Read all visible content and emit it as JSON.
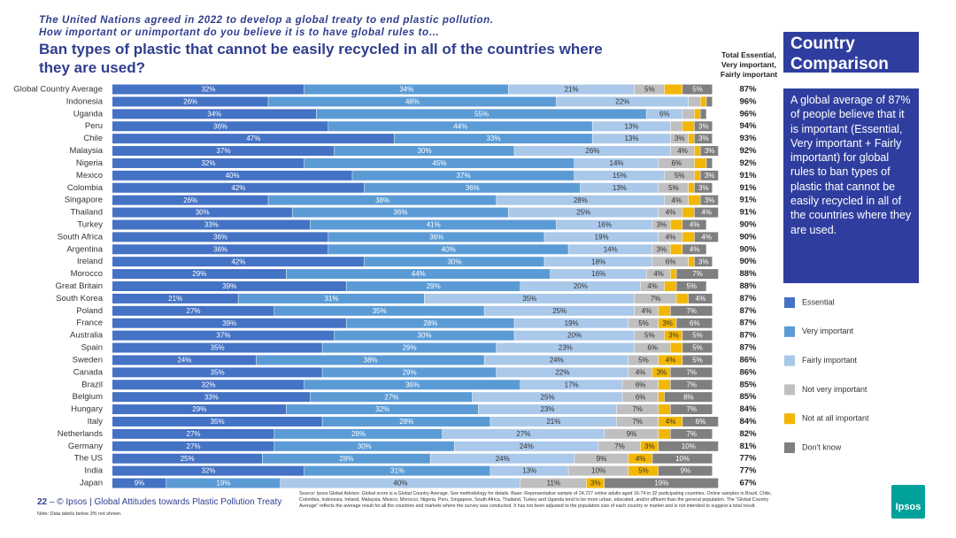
{
  "header": {
    "intro": "The United Nations agreed in 2022 to develop a global treaty to end plastic pollution.",
    "question": "How important or unimportant do you believe it is to have global rules to…"
  },
  "chart_data": {
    "type": "stacked-bar",
    "title": "Ban types of plastic that cannot be easily recycled in all of the countries where they are used?",
    "categories": [
      "Global Country Average",
      "Indonesia",
      "Uganda",
      "Peru",
      "Chile",
      "Malaysia",
      "Nigeria",
      "Mexico",
      "Colombia",
      "Singapore",
      "Thailand",
      "Turkey",
      "South Africa",
      "Argentina",
      "Ireland",
      "Morocco",
      "Great Britain",
      "South Korea",
      "Poland",
      "France",
      "Australia",
      "Spain",
      "Sweden",
      "Canada",
      "Brazil",
      "Belgium",
      "Hungary",
      "Italy",
      "Netherlands",
      "Germany",
      "The US",
      "India",
      "Japan"
    ],
    "xlim": [
      0,
      100
    ],
    "series": [
      {
        "name": "Essential",
        "color": "#4472c4",
        "values": [
          32,
          26,
          34,
          36,
          47,
          37,
          32,
          40,
          42,
          26,
          30,
          33,
          36,
          36,
          42,
          29,
          39,
          21,
          27,
          39,
          37,
          35,
          24,
          35,
          32,
          33,
          29,
          35,
          27,
          27,
          25,
          32,
          9
        ],
        "value_labels": [
          "32%",
          "26%",
          "34%",
          "36%",
          "47%",
          "37%",
          "32%",
          "40%",
          "42%",
          "26%",
          "30%",
          "33%",
          "36%",
          "36%",
          "42%",
          "29%",
          "39%",
          "21%",
          "27%",
          "39%",
          "37%",
          "35%",
          "24%",
          "35%",
          "32%",
          "33%",
          "29%",
          "35%",
          "27%",
          "27%",
          "25%",
          "32%",
          "9%"
        ]
      },
      {
        "name": "Very important",
        "color": "#5b9bd5",
        "values": [
          34,
          48,
          55,
          44,
          33,
          30,
          45,
          37,
          36,
          38,
          36,
          41,
          36,
          40,
          30,
          44,
          29,
          31,
          35,
          28,
          30,
          29,
          38,
          29,
          36,
          27,
          32,
          28,
          28,
          30,
          28,
          31,
          19
        ],
        "value_labels": [
          "34%",
          "48%",
          "55%",
          "44%",
          "33%",
          "30%",
          "45%",
          "37%",
          "36%",
          "38%",
          "36%",
          "41%",
          "36%",
          "40%",
          "30%",
          "44%",
          "29%",
          "31%",
          "35%",
          "28%",
          "30%",
          "29%",
          "38%",
          "29%",
          "36%",
          "27%",
          "32%",
          "28%",
          "28%",
          "30%",
          "28%",
          "31%",
          "19%"
        ]
      },
      {
        "name": "Fairly important",
        "color": "#a9c8ea",
        "values": [
          21,
          22,
          6,
          13,
          13,
          26,
          14,
          15,
          13,
          28,
          25,
          16,
          19,
          14,
          18,
          16,
          20,
          35,
          25,
          19,
          20,
          23,
          24,
          22,
          17,
          25,
          23,
          21,
          27,
          24,
          24,
          13,
          40
        ],
        "value_labels": [
          "21%",
          "22%",
          "6%",
          "13%",
          "13%",
          "26%",
          "14%",
          "15%",
          "13%",
          "28%",
          "25%",
          "16%",
          "19%",
          "14%",
          "18%",
          "16%",
          "20%",
          "35%",
          "25%",
          "19%",
          "20%",
          "23%",
          "24%",
          "22%",
          "17%",
          "25%",
          "23%",
          "21%",
          "27%",
          "24%",
          "24%",
          "13%",
          "40%"
        ]
      },
      {
        "name": "Not very important",
        "color": "#bfbfbf",
        "values": [
          5,
          2,
          2,
          2,
          3,
          4,
          6,
          5,
          5,
          4,
          4,
          3,
          4,
          3,
          6,
          4,
          4,
          7,
          4,
          5,
          5,
          6,
          5,
          4,
          6,
          6,
          7,
          7,
          9,
          7,
          9,
          10,
          11
        ],
        "value_labels": [
          "5%",
          null,
          null,
          null,
          "3%",
          "4%",
          "6%",
          "5%",
          "5%",
          "4%",
          "4%",
          "3%",
          "4%",
          "3%",
          "6%",
          "4%",
          "4%",
          "7%",
          "4%",
          "5%",
          "5%",
          "6%",
          "5%",
          "4%",
          "6%",
          "6%",
          "7%",
          "7%",
          "9%",
          "7%",
          "9%",
          "10%",
          "11%"
        ]
      },
      {
        "name": "Not at all important",
        "color": "#f2b705",
        "values": [
          3,
          1,
          1,
          2,
          1,
          1,
          2,
          1,
          1,
          2,
          2,
          2,
          2,
          2,
          1,
          1,
          2,
          2,
          2,
          3,
          3,
          2,
          4,
          3,
          2,
          1,
          2,
          4,
          2,
          3,
          4,
          5,
          3
        ],
        "value_labels": [
          null,
          null,
          null,
          null,
          null,
          null,
          null,
          null,
          null,
          null,
          null,
          null,
          null,
          null,
          null,
          null,
          null,
          null,
          null,
          "3%",
          "3%",
          null,
          "4%",
          "3%",
          null,
          null,
          null,
          "4%",
          null,
          "3%",
          "4%",
          "5%",
          "3%"
        ]
      },
      {
        "name": "Don't know",
        "color": "#7f7f7f",
        "values": [
          5,
          1,
          1,
          3,
          3,
          3,
          1,
          3,
          3,
          3,
          4,
          4,
          4,
          4,
          3,
          7,
          5,
          4,
          7,
          6,
          5,
          5,
          5,
          7,
          7,
          8,
          7,
          6,
          7,
          10,
          10,
          9,
          19
        ],
        "value_labels": [
          "5%",
          null,
          null,
          "3%",
          "3%",
          "3%",
          null,
          "3%",
          "3%",
          "3%",
          "4%",
          "4%",
          "4%",
          "4%",
          "3%",
          "7%",
          "5%",
          "4%",
          "7%",
          "6%",
          "5%",
          "5%",
          "5%",
          "7%",
          "7%",
          "8%",
          "7%",
          "6%",
          "7%",
          "10%",
          "10%",
          "9%",
          "19%"
        ]
      }
    ],
    "totals": {
      "name": "Total Essential, Very important, Fairly important",
      "values": [
        87,
        96,
        96,
        94,
        93,
        92,
        92,
        91,
        91,
        91,
        91,
        90,
        90,
        90,
        90,
        88,
        88,
        87,
        87,
        87,
        87,
        87,
        86,
        86,
        85,
        85,
        84,
        84,
        82,
        81,
        77,
        77,
        67
      ],
      "value_labels": [
        "87%",
        "96%",
        "96%",
        "94%",
        "93%",
        "92%",
        "92%",
        "91%",
        "91%",
        "91%",
        "91%",
        "90%",
        "90%",
        "90%",
        "90%",
        "88%",
        "88%",
        "87%",
        "87%",
        "87%",
        "87%",
        "87%",
        "86%",
        "86%",
        "85%",
        "85%",
        "84%",
        "84%",
        "82%",
        "81%",
        "77%",
        "77%",
        "67%"
      ]
    }
  },
  "panel": {
    "title": "Country Comparison",
    "text": "A global average of 87% of people believe that it is important (Essential, Very important + Fairly important) for global rules to ban types of plastic that cannot be easily recycled in all of the countries where they are used."
  },
  "footer": {
    "page": "22",
    "credit": "– © Ipsos | Global Attitudes towards Plastic Pollution Treaty",
    "note": "Note: Data labels below 3% not shown.",
    "source": "Source: Ipsos Global Advisor. Global score is a Global Country Average. See methodology for details. Base: Representative sample of 24,727 online adults aged 16-74 in 32 participating countries. Online samples in Brazil, Chile, Colombia, Indonesia, Ireland, Malaysia, Mexico, Morocco, Nigeria, Peru, Singapore, South Africa, Thailand, Turkey and Uganda tend to be more urban, educated, and/or affluent than the general population. The “Global Country Average” reflects the average result for all the countries and markets where the survey was conducted. It has not been adjusted to the population size of each country or market and is not intended to suggest a total result.",
    "logo": "Ipsos"
  }
}
